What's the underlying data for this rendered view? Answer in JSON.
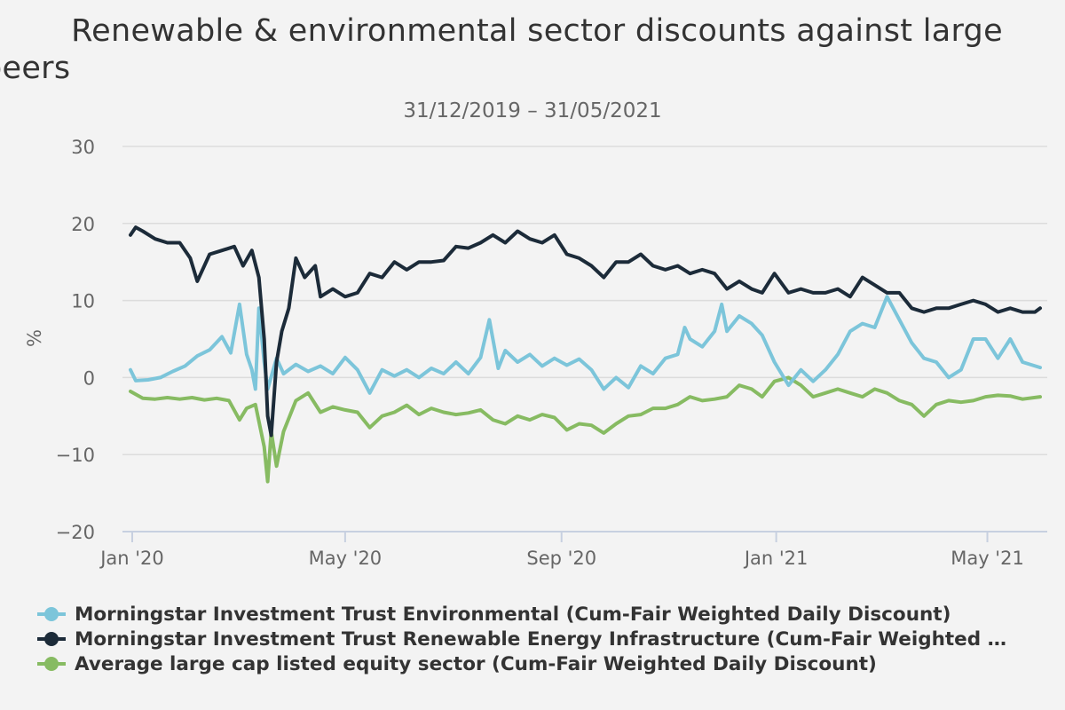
{
  "chart_data": {
    "type": "line",
    "title": "Renewable & environmental sector discounts against large peers",
    "title_line1": "Renewable & environmental sector discounts against large",
    "title_line2": "peers",
    "subtitle": "31/12/2019 – 31/05/2021",
    "ylabel": "%",
    "ylim": [
      -20,
      30
    ],
    "yticks": [
      30,
      20,
      10,
      0,
      -10,
      -20
    ],
    "ytick_labels": [
      "30",
      "20",
      "10",
      "0",
      "−10",
      "−20"
    ],
    "xlim": [
      "2019-12-31",
      "2021-05-31"
    ],
    "xticks": [
      {
        "date": "2020-01-01",
        "label": "Jan '20"
      },
      {
        "date": "2020-05-01",
        "label": "May '20"
      },
      {
        "date": "2020-09-01",
        "label": "Sep '20"
      },
      {
        "date": "2021-01-01",
        "label": "Jan '21"
      },
      {
        "date": "2021-05-01",
        "label": "May '21"
      }
    ],
    "grid": true,
    "legend_position": "bottom",
    "series": [
      {
        "name": "Morningstar Investment Trust Environmental (Cum-Fair Weighted Daily Discount)",
        "color": "#7cc5da",
        "points": [
          [
            "2019-12-31",
            1.0
          ],
          [
            "2020-01-03",
            -0.4
          ],
          [
            "2020-01-10",
            -0.3
          ],
          [
            "2020-01-17",
            0.0
          ],
          [
            "2020-01-24",
            0.8
          ],
          [
            "2020-01-31",
            1.5
          ],
          [
            "2020-02-07",
            2.8
          ],
          [
            "2020-02-14",
            3.6
          ],
          [
            "2020-02-21",
            5.3
          ],
          [
            "2020-02-26",
            3.2
          ],
          [
            "2020-03-02",
            9.5
          ],
          [
            "2020-03-06",
            3.0
          ],
          [
            "2020-03-09",
            1.0
          ],
          [
            "2020-03-11",
            -1.5
          ],
          [
            "2020-03-13",
            9.0
          ],
          [
            "2020-03-16",
            2.0
          ],
          [
            "2020-03-18",
            -1.5
          ],
          [
            "2020-03-23",
            2.5
          ],
          [
            "2020-03-27",
            0.5
          ],
          [
            "2020-04-03",
            1.7
          ],
          [
            "2020-04-10",
            0.8
          ],
          [
            "2020-04-17",
            1.5
          ],
          [
            "2020-04-24",
            0.5
          ],
          [
            "2020-05-01",
            2.6
          ],
          [
            "2020-05-08",
            1.0
          ],
          [
            "2020-05-15",
            -2.0
          ],
          [
            "2020-05-22",
            1.0
          ],
          [
            "2020-05-29",
            0.2
          ],
          [
            "2020-06-05",
            1.0
          ],
          [
            "2020-06-12",
            0.0
          ],
          [
            "2020-06-19",
            1.2
          ],
          [
            "2020-06-26",
            0.5
          ],
          [
            "2020-07-03",
            2.0
          ],
          [
            "2020-07-10",
            0.5
          ],
          [
            "2020-07-17",
            2.6
          ],
          [
            "2020-07-22",
            7.5
          ],
          [
            "2020-07-27",
            1.2
          ],
          [
            "2020-07-31",
            3.5
          ],
          [
            "2020-08-07",
            2.0
          ],
          [
            "2020-08-14",
            3.0
          ],
          [
            "2020-08-21",
            1.5
          ],
          [
            "2020-08-28",
            2.5
          ],
          [
            "2020-09-04",
            1.6
          ],
          [
            "2020-09-11",
            2.4
          ],
          [
            "2020-09-18",
            1.0
          ],
          [
            "2020-09-25",
            -1.5
          ],
          [
            "2020-10-02",
            0.0
          ],
          [
            "2020-10-09",
            -1.3
          ],
          [
            "2020-10-16",
            1.5
          ],
          [
            "2020-10-23",
            0.5
          ],
          [
            "2020-10-30",
            2.5
          ],
          [
            "2020-11-06",
            3.0
          ],
          [
            "2020-11-10",
            6.5
          ],
          [
            "2020-11-13",
            5.0
          ],
          [
            "2020-11-20",
            4.0
          ],
          [
            "2020-11-27",
            6.0
          ],
          [
            "2020-12-01",
            9.5
          ],
          [
            "2020-12-04",
            6.0
          ],
          [
            "2020-12-11",
            8.0
          ],
          [
            "2020-12-18",
            7.0
          ],
          [
            "2020-12-24",
            5.5
          ],
          [
            "2020-12-31",
            2.0
          ],
          [
            "2021-01-08",
            -1.0
          ],
          [
            "2021-01-15",
            1.0
          ],
          [
            "2021-01-22",
            -0.5
          ],
          [
            "2021-01-29",
            1.0
          ],
          [
            "2021-02-05",
            3.0
          ],
          [
            "2021-02-12",
            6.0
          ],
          [
            "2021-02-19",
            7.0
          ],
          [
            "2021-02-26",
            6.5
          ],
          [
            "2021-03-05",
            10.5
          ],
          [
            "2021-03-12",
            7.5
          ],
          [
            "2021-03-19",
            4.5
          ],
          [
            "2021-03-26",
            2.5
          ],
          [
            "2021-04-02",
            2.0
          ],
          [
            "2021-04-09",
            0.0
          ],
          [
            "2021-04-16",
            1.0
          ],
          [
            "2021-04-23",
            5.0
          ],
          [
            "2021-04-30",
            5.0
          ],
          [
            "2021-05-07",
            2.5
          ],
          [
            "2021-05-14",
            5.0
          ],
          [
            "2021-05-21",
            2.0
          ],
          [
            "2021-05-31",
            1.3
          ]
        ]
      },
      {
        "name": "Morningstar Investment Trust Renewable Energy Infrastructure (Cum-Fair Weighted …",
        "color": "#1c2b39",
        "points": [
          [
            "2019-12-31",
            18.5
          ],
          [
            "2020-01-03",
            19.5
          ],
          [
            "2020-01-07",
            19.0
          ],
          [
            "2020-01-14",
            18.0
          ],
          [
            "2020-01-21",
            17.5
          ],
          [
            "2020-01-28",
            17.5
          ],
          [
            "2020-02-03",
            15.5
          ],
          [
            "2020-02-07",
            12.5
          ],
          [
            "2020-02-14",
            16.0
          ],
          [
            "2020-02-21",
            16.5
          ],
          [
            "2020-02-28",
            17.0
          ],
          [
            "2020-03-04",
            14.5
          ],
          [
            "2020-03-09",
            16.5
          ],
          [
            "2020-03-13",
            13.0
          ],
          [
            "2020-03-16",
            5.0
          ],
          [
            "2020-03-18",
            -5.0
          ],
          [
            "2020-03-20",
            -7.5
          ],
          [
            "2020-03-23",
            2.0
          ],
          [
            "2020-03-26",
            6.0
          ],
          [
            "2020-03-30",
            9.0
          ],
          [
            "2020-04-03",
            15.5
          ],
          [
            "2020-04-08",
            13.0
          ],
          [
            "2020-04-14",
            14.5
          ],
          [
            "2020-04-17",
            10.5
          ],
          [
            "2020-04-24",
            11.5
          ],
          [
            "2020-05-01",
            10.5
          ],
          [
            "2020-05-08",
            11.0
          ],
          [
            "2020-05-15",
            13.5
          ],
          [
            "2020-05-22",
            13.0
          ],
          [
            "2020-05-29",
            15.0
          ],
          [
            "2020-06-05",
            14.0
          ],
          [
            "2020-06-12",
            15.0
          ],
          [
            "2020-06-19",
            15.0
          ],
          [
            "2020-06-26",
            15.2
          ],
          [
            "2020-07-03",
            17.0
          ],
          [
            "2020-07-10",
            16.8
          ],
          [
            "2020-07-17",
            17.5
          ],
          [
            "2020-07-24",
            18.5
          ],
          [
            "2020-07-31",
            17.5
          ],
          [
            "2020-08-07",
            19.0
          ],
          [
            "2020-08-14",
            18.0
          ],
          [
            "2020-08-21",
            17.5
          ],
          [
            "2020-08-28",
            18.5
          ],
          [
            "2020-09-04",
            16.0
          ],
          [
            "2020-09-11",
            15.5
          ],
          [
            "2020-09-18",
            14.5
          ],
          [
            "2020-09-25",
            13.0
          ],
          [
            "2020-10-02",
            15.0
          ],
          [
            "2020-10-09",
            15.0
          ],
          [
            "2020-10-16",
            16.0
          ],
          [
            "2020-10-23",
            14.5
          ],
          [
            "2020-10-30",
            14.0
          ],
          [
            "2020-11-06",
            14.5
          ],
          [
            "2020-11-13",
            13.5
          ],
          [
            "2020-11-20",
            14.0
          ],
          [
            "2020-11-27",
            13.5
          ],
          [
            "2020-12-04",
            11.5
          ],
          [
            "2020-12-11",
            12.5
          ],
          [
            "2020-12-18",
            11.5
          ],
          [
            "2020-12-24",
            11.0
          ],
          [
            "2020-12-31",
            13.5
          ],
          [
            "2021-01-08",
            11.0
          ],
          [
            "2021-01-15",
            11.5
          ],
          [
            "2021-01-22",
            11.0
          ],
          [
            "2021-01-29",
            11.0
          ],
          [
            "2021-02-05",
            11.5
          ],
          [
            "2021-02-12",
            10.5
          ],
          [
            "2021-02-19",
            13.0
          ],
          [
            "2021-02-26",
            12.0
          ],
          [
            "2021-03-05",
            11.0
          ],
          [
            "2021-03-12",
            11.0
          ],
          [
            "2021-03-19",
            9.0
          ],
          [
            "2021-03-26",
            8.5
          ],
          [
            "2021-04-02",
            9.0
          ],
          [
            "2021-04-09",
            9.0
          ],
          [
            "2021-04-16",
            9.5
          ],
          [
            "2021-04-23",
            10.0
          ],
          [
            "2021-04-30",
            9.5
          ],
          [
            "2021-05-07",
            8.5
          ],
          [
            "2021-05-14",
            9.0
          ],
          [
            "2021-05-21",
            8.5
          ],
          [
            "2021-05-28",
            8.5
          ],
          [
            "2021-05-31",
            9.0
          ]
        ]
      },
      {
        "name": "Average large cap listed equity sector (Cum-Fair Weighted Daily Discount)",
        "color": "#87bb62",
        "points": [
          [
            "2019-12-31",
            -1.8
          ],
          [
            "2020-01-07",
            -2.7
          ],
          [
            "2020-01-14",
            -2.8
          ],
          [
            "2020-01-21",
            -2.6
          ],
          [
            "2020-01-28",
            -2.8
          ],
          [
            "2020-02-04",
            -2.6
          ],
          [
            "2020-02-11",
            -2.9
          ],
          [
            "2020-02-18",
            -2.7
          ],
          [
            "2020-02-25",
            -3.0
          ],
          [
            "2020-03-02",
            -5.5
          ],
          [
            "2020-03-06",
            -4.0
          ],
          [
            "2020-03-11",
            -3.5
          ],
          [
            "2020-03-16",
            -9.0
          ],
          [
            "2020-03-18",
            -13.5
          ],
          [
            "2020-03-20",
            -7.0
          ],
          [
            "2020-03-23",
            -11.5
          ],
          [
            "2020-03-27",
            -7.0
          ],
          [
            "2020-04-03",
            -3.0
          ],
          [
            "2020-04-10",
            -2.0
          ],
          [
            "2020-04-17",
            -4.5
          ],
          [
            "2020-04-24",
            -3.8
          ],
          [
            "2020-05-01",
            -4.2
          ],
          [
            "2020-05-08",
            -4.5
          ],
          [
            "2020-05-15",
            -6.5
          ],
          [
            "2020-05-22",
            -5.0
          ],
          [
            "2020-05-29",
            -4.5
          ],
          [
            "2020-06-05",
            -3.6
          ],
          [
            "2020-06-12",
            -4.8
          ],
          [
            "2020-06-19",
            -4.0
          ],
          [
            "2020-06-26",
            -4.5
          ],
          [
            "2020-07-03",
            -4.8
          ],
          [
            "2020-07-10",
            -4.6
          ],
          [
            "2020-07-17",
            -4.2
          ],
          [
            "2020-07-24",
            -5.5
          ],
          [
            "2020-07-31",
            -6.0
          ],
          [
            "2020-08-07",
            -5.0
          ],
          [
            "2020-08-14",
            -5.5
          ],
          [
            "2020-08-21",
            -4.8
          ],
          [
            "2020-08-28",
            -5.2
          ],
          [
            "2020-09-04",
            -6.8
          ],
          [
            "2020-09-11",
            -6.0
          ],
          [
            "2020-09-18",
            -6.2
          ],
          [
            "2020-09-25",
            -7.2
          ],
          [
            "2020-10-02",
            -6.0
          ],
          [
            "2020-10-09",
            -5.0
          ],
          [
            "2020-10-16",
            -4.8
          ],
          [
            "2020-10-23",
            -4.0
          ],
          [
            "2020-10-30",
            -4.0
          ],
          [
            "2020-11-06",
            -3.5
          ],
          [
            "2020-11-13",
            -2.5
          ],
          [
            "2020-11-20",
            -3.0
          ],
          [
            "2020-11-27",
            -2.8
          ],
          [
            "2020-12-04",
            -2.5
          ],
          [
            "2020-12-11",
            -1.0
          ],
          [
            "2020-12-18",
            -1.5
          ],
          [
            "2020-12-24",
            -2.5
          ],
          [
            "2020-12-31",
            -0.5
          ],
          [
            "2021-01-08",
            0.0
          ],
          [
            "2021-01-15",
            -1.0
          ],
          [
            "2021-01-22",
            -2.5
          ],
          [
            "2021-01-29",
            -2.0
          ],
          [
            "2021-02-05",
            -1.5
          ],
          [
            "2021-02-12",
            -2.0
          ],
          [
            "2021-02-19",
            -2.5
          ],
          [
            "2021-02-26",
            -1.5
          ],
          [
            "2021-03-05",
            -2.0
          ],
          [
            "2021-03-12",
            -3.0
          ],
          [
            "2021-03-19",
            -3.5
          ],
          [
            "2021-03-26",
            -5.0
          ],
          [
            "2021-04-02",
            -3.5
          ],
          [
            "2021-04-09",
            -3.0
          ],
          [
            "2021-04-16",
            -3.2
          ],
          [
            "2021-04-23",
            -3.0
          ],
          [
            "2021-04-30",
            -2.5
          ],
          [
            "2021-05-07",
            -2.3
          ],
          [
            "2021-05-14",
            -2.4
          ],
          [
            "2021-05-21",
            -2.8
          ],
          [
            "2021-05-31",
            -2.5
          ]
        ]
      }
    ]
  }
}
